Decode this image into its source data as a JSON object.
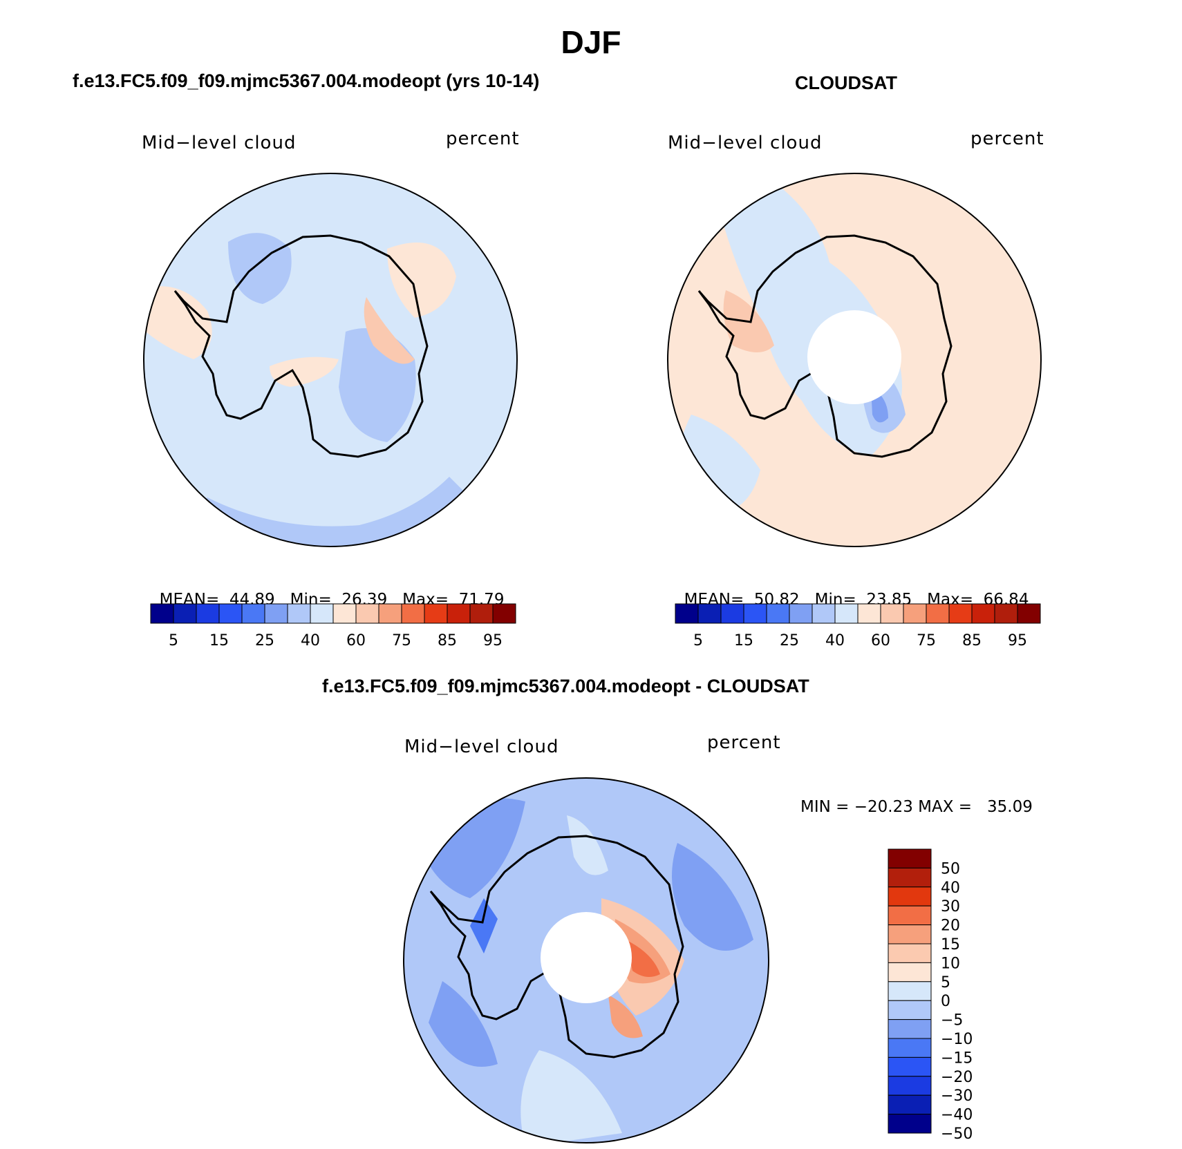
{
  "figure_title": "DJF",
  "panels": [
    {
      "id": "model",
      "title": "f.e13.FC5.f09_f09.mjmc5367.004.modeopt (yrs 10-14)",
      "variable": "Mid−level cloud",
      "units": "percent",
      "stats": {
        "mean_label": "MEAN=",
        "mean": "44.89",
        "min_label": "Min=",
        "min": "26.39",
        "max_label": "Max=",
        "max": "71.79"
      }
    },
    {
      "id": "obs",
      "title": "CLOUDSAT",
      "variable": "Mid−level cloud",
      "units": "percent",
      "stats": {
        "mean_label": "MEAN=",
        "mean": "50.82",
        "min_label": "Min=",
        "min": "23.85",
        "max_label": "Max=",
        "max": "66.84"
      }
    },
    {
      "id": "diff",
      "title": "f.e13.FC5.f09_f09.mjmc5367.004.modeopt - CLOUDSAT",
      "variable": "Mid−level cloud",
      "units": "percent",
      "stats_text": "MIN = −20.23 MAX =   35.09"
    }
  ],
  "colorbar_abs": {
    "colors": [
      "#00008b",
      "#0a1fb4",
      "#1b3be2",
      "#2b55f5",
      "#4a78f5",
      "#7fa0f3",
      "#b0c8f8",
      "#d6e7fa",
      "#fde6d6",
      "#fac9b0",
      "#f6a07c",
      "#f26e45",
      "#e63c16",
      "#c9210a",
      "#b01e0c",
      "#820000"
    ],
    "tick_labels": [
      "5",
      "15",
      "25",
      "40",
      "60",
      "75",
      "85",
      "95"
    ]
  },
  "colorbar_diff": {
    "colors": [
      "#820000",
      "#b21f0c",
      "#e2380e",
      "#f26e45",
      "#f6a07c",
      "#fbcab0",
      "#fde6d6",
      "#d6e7fa",
      "#b0c8f8",
      "#7fa0f3",
      "#4a78f5",
      "#2b55f5",
      "#1b3be2",
      "#0a1fb4",
      "#00008b"
    ],
    "tick_labels": [
      "50",
      "40",
      "30",
      "20",
      "15",
      "10",
      "5",
      "0",
      "−5",
      "−10",
      "−15",
      "−20",
      "−30",
      "−40",
      "−50"
    ]
  }
}
